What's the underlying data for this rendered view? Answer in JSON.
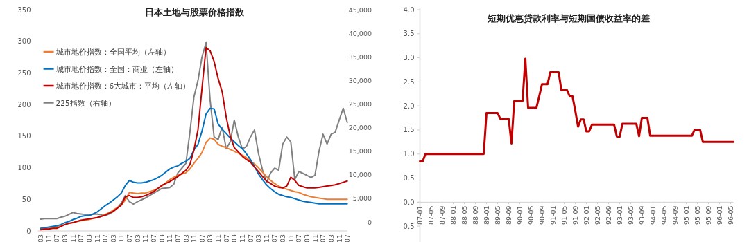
{
  "chart_data": [
    {
      "type": "line",
      "title": "日本土地与股票价格指数",
      "legend": "top left",
      "categories": [
        "03",
        null,
        "11",
        null,
        "07",
        null,
        "03",
        null,
        "11",
        null,
        "07",
        null,
        "03",
        null,
        "11",
        null,
        "07",
        null,
        "03",
        null,
        "11",
        null,
        "07",
        null,
        "03",
        null,
        "11",
        null,
        "07",
        null,
        "03",
        null,
        "11",
        null,
        "07",
        null,
        "03",
        null,
        "11",
        null,
        "07",
        null,
        "03",
        null,
        "11",
        null,
        "07",
        null,
        "03",
        null,
        "11",
        null,
        "07",
        null,
        "03",
        null,
        "11",
        null,
        "07",
        null,
        "03",
        null,
        "11",
        null,
        "07",
        null,
        "03",
        null,
        "11",
        null,
        "07",
        null,
        "03",
        null,
        "11",
        null,
        "07"
      ],
      "ylim": [
        0,
        350
      ],
      "yticks": [
        0,
        50,
        100,
        150,
        200,
        250,
        300,
        350
      ],
      "y2lim": [
        -1900,
        45000
      ],
      "y2ticks": [
        0,
        {
          "value": 5000,
          "label": "5,000"
        },
        {
          "value": 10000,
          "label": "10,000"
        },
        {
          "value": 15000,
          "label": "15,000"
        },
        {
          "value": 20000,
          "label": "20,000"
        },
        {
          "value": 25000,
          "label": "25,000"
        },
        {
          "value": 30000,
          "label": "30,000"
        },
        {
          "value": 35000,
          "label": "35,000"
        },
        {
          "value": 40000,
          "label": "40,000"
        },
        {
          "value": 45000,
          "label": "45,000"
        }
      ],
      "series": [
        {
          "name": "225指数（右轴）",
          "color": "#808080",
          "axis": "y2",
          "values": [
            600,
            700,
            700,
            700,
            700,
            1000,
            1200,
            1600,
            2000,
            1800,
            1700,
            1600,
            1500,
            1600,
            1700,
            1500,
            1300,
            1700,
            2200,
            3000,
            4000,
            5600,
            4300,
            3800,
            4300,
            4700,
            5100,
            5600,
            6100,
            6600,
            7100,
            7200,
            7300,
            8000,
            10400,
            11400,
            12400,
            19000,
            26500,
            30000,
            35000,
            38000,
            25900,
            18000,
            17500,
            20100,
            15500,
            17000,
            21600,
            18000,
            15500,
            16000,
            18000,
            19500,
            14500,
            11000,
            8400,
            10400,
            11400,
            11000,
            16500,
            18000,
            17000,
            9000,
            10700,
            10300,
            9900,
            9400,
            9900,
            15000,
            18600,
            16500,
            18600,
            19000,
            21600,
            24100,
            21100
          ]
        },
        {
          "name": "城市地价指数：全国平均（左轴）",
          "color": "#ed7d31",
          "values": [
            2,
            3,
            4,
            5,
            6,
            8,
            10,
            12,
            13,
            15,
            16,
            17,
            18,
            20,
            21,
            23,
            26,
            29,
            33,
            37,
            41,
            49,
            61,
            60,
            59,
            60,
            60,
            62,
            64,
            67,
            71,
            76,
            81,
            85,
            88,
            90,
            92,
            98,
            107,
            115,
            124,
            140,
            147,
            145,
            137,
            134,
            132,
            129,
            126,
            123,
            120,
            116,
            111,
            106,
            100,
            93,
            86,
            80,
            75,
            71,
            68,
            66,
            64,
            62,
            61,
            58,
            56,
            54,
            53,
            52,
            51,
            50,
            50,
            50,
            50,
            50,
            50
          ]
        },
        {
          "name": "城市地价指数：全国：商业（左轴）",
          "color": "#0070c0",
          "values": [
            4,
            5,
            6,
            7,
            8,
            10,
            13,
            15,
            18,
            20,
            23,
            24,
            24,
            27,
            30,
            35,
            40,
            44,
            49,
            54,
            60,
            72,
            80,
            77,
            76,
            76,
            77,
            79,
            81,
            84,
            88,
            93,
            98,
            101,
            103,
            107,
            110,
            115,
            128,
            137,
            158,
            185,
            194,
            193,
            169,
            161,
            154,
            147,
            141,
            135,
            130,
            122,
            113,
            102,
            90,
            81,
            73,
            67,
            62,
            58,
            56,
            54,
            53,
            51,
            49,
            47,
            46,
            45,
            44,
            43,
            43,
            43,
            43,
            43,
            43,
            43,
            43
          ]
        },
        {
          "name": "城市地价指数：6大城市：平均（左轴）",
          "color": "#c00000",
          "values": [
            2,
            3,
            3,
            4,
            4,
            7,
            10,
            12,
            13,
            15,
            17,
            18,
            19,
            20,
            21,
            23,
            25,
            28,
            31,
            36,
            41,
            54,
            56,
            53,
            53,
            54,
            56,
            59,
            62,
            67,
            72,
            75,
            78,
            82,
            86,
            91,
            96,
            105,
            128,
            160,
            226,
            290,
            285,
            268,
            241,
            220,
            180,
            150,
            132,
            125,
            118,
            113,
            109,
            101,
            94,
            86,
            79,
            75,
            71,
            69,
            68,
            71,
            85,
            80,
            72,
            70,
            68,
            68,
            68,
            69,
            70,
            71,
            72,
            73,
            75,
            77,
            79
          ]
        }
      ]
    },
    {
      "type": "line",
      "title": "短期优惠贷款利率与短期国债收益率的差",
      "color": "#c00000",
      "ylim": [
        -0.8,
        4.0
      ],
      "yticks": [
        -0.5,
        {
          "value": 0,
          "label": "0.0"
        },
        0.5,
        {
          "value": 1,
          "label": "1.0"
        },
        1.5,
        {
          "value": 2,
          "label": "2.0"
        },
        2.5,
        {
          "value": 3,
          "label": "3.0"
        },
        3.5,
        {
          "value": 4,
          "label": "4.0"
        }
      ],
      "categories": [
        "87-01",
        null,
        null,
        null,
        "87-05",
        null,
        null,
        null,
        "87-09",
        null,
        null,
        null,
        "88-01",
        null,
        null,
        null,
        "88-05",
        null,
        null,
        null,
        "88-09",
        null,
        null,
        null,
        "89-01",
        null,
        null,
        null,
        "89-05",
        null,
        null,
        null,
        "89-09",
        null,
        null,
        null,
        "90-01",
        null,
        null,
        null,
        "90-05",
        null,
        null,
        null,
        "90-09",
        null,
        null,
        null,
        "91-01",
        null,
        null,
        null,
        "91-05",
        null,
        null,
        null,
        "91-09",
        null,
        null,
        null,
        "92-01",
        null,
        null,
        null,
        "92-05",
        null,
        null,
        null,
        "92-09",
        null,
        null,
        null,
        "93-01",
        null,
        null,
        null,
        "93-05",
        null,
        null,
        null,
        "93-09",
        null,
        null,
        null,
        "94-01",
        null,
        null,
        null,
        "94-05",
        null,
        null,
        null,
        "94-09",
        null,
        null,
        null,
        "95-01",
        null,
        null,
        null,
        "95-05",
        null,
        null,
        null,
        "95-09",
        null,
        null,
        null,
        "96-01",
        null,
        null,
        null,
        "96-05",
        null
      ],
      "values": [
        0.85,
        0.85,
        1.0,
        1.0,
        1.0,
        1.0,
        1.0,
        1.0,
        1.0,
        1.0,
        1.0,
        1.0,
        1.0,
        1.0,
        1.0,
        1.0,
        1.0,
        1.0,
        1.0,
        1.0,
        1.0,
        1.0,
        1.0,
        1.0,
        1.85,
        1.85,
        1.85,
        1.85,
        1.85,
        1.73,
        1.73,
        1.73,
        1.73,
        1.22,
        2.1,
        2.1,
        2.1,
        2.1,
        2.98,
        1.96,
        1.96,
        1.96,
        1.96,
        2.2,
        2.45,
        2.45,
        2.45,
        2.7,
        2.7,
        2.7,
        2.7,
        2.33,
        2.33,
        2.33,
        2.2,
        2.2,
        1.9,
        1.57,
        1.72,
        1.72,
        1.47,
        1.47,
        1.61,
        1.61,
        1.61,
        1.61,
        1.61,
        1.61,
        1.61,
        1.61,
        1.61,
        1.36,
        1.36,
        1.63,
        1.63,
        1.63,
        1.63,
        1.63,
        1.63,
        1.37,
        1.75,
        1.75,
        1.75,
        1.38,
        1.38,
        1.38,
        1.38,
        1.38,
        1.38,
        1.38,
        1.38,
        1.38,
        1.38,
        1.38,
        1.38,
        1.38,
        1.38,
        1.38,
        1.38,
        1.5,
        1.5,
        1.5,
        1.25,
        1.25,
        1.25,
        1.25,
        1.25,
        1.25,
        1.25,
        1.25,
        1.25,
        1.25,
        1.25,
        1.25
      ]
    }
  ]
}
